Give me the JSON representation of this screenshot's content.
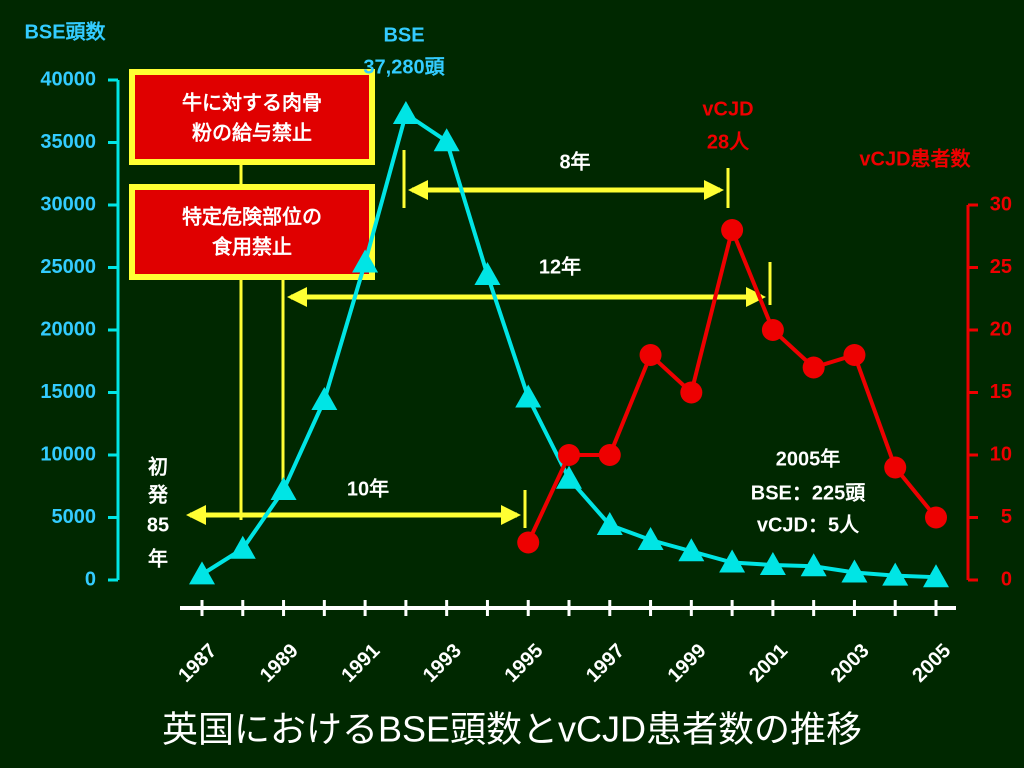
{
  "chart_data": {
    "type": "line",
    "title": "英国におけるBSE頭数とvCJD患者数の推移",
    "y_label": "BSE頭数",
    "y2_label": "vCJD患者数",
    "categories": [
      "1987",
      null,
      "1989",
      null,
      "1991",
      null,
      "1993",
      null,
      "1995",
      null,
      "1997",
      null,
      "1999",
      null,
      "2001",
      null,
      "2003",
      null,
      "2005"
    ],
    "ylim": [
      0,
      40000
    ],
    "yticks": [
      0,
      5000,
      10000,
      15000,
      20000,
      25000,
      30000,
      35000,
      40000
    ],
    "y2lim": [
      0,
      30
    ],
    "y2ticks": [
      0,
      5,
      10,
      15,
      20,
      25,
      30
    ],
    "background": "#002800",
    "series": [
      {
        "name": "BSE",
        "color": "#00e5e5",
        "marker": "triangle",
        "axis": "y",
        "values": [
          450,
          2500,
          7200,
          14400,
          25400,
          37280,
          35100,
          24400,
          14600,
          8100,
          4400,
          3200,
          2300,
          1400,
          1200,
          1100,
          600,
          350,
          225
        ]
      },
      {
        "name": "vCJD",
        "color": "#ee0000",
        "marker": "circle",
        "axis": "y2",
        "values": [
          null,
          null,
          null,
          null,
          null,
          null,
          null,
          null,
          3,
          10,
          10,
          18,
          15,
          28,
          20,
          17,
          18,
          9,
          5
        ]
      }
    ],
    "annotations": {
      "ban_feed": [
        "牛に対する肉骨",
        "粉の給与禁止"
      ],
      "ban_srm": [
        "特定危険部位の",
        "食用禁止"
      ],
      "gap_8": "8年",
      "gap_12": "12年",
      "gap_10": "10年",
      "first_case": [
        "初",
        "発",
        "85",
        "年"
      ],
      "bse_peak": [
        "BSE",
        "37,280頭"
      ],
      "vcjd_peak": [
        "vCJD",
        "28人"
      ],
      "y2005": [
        "2005年",
        "BSE：225頭",
        "vCJD：5人"
      ]
    }
  }
}
